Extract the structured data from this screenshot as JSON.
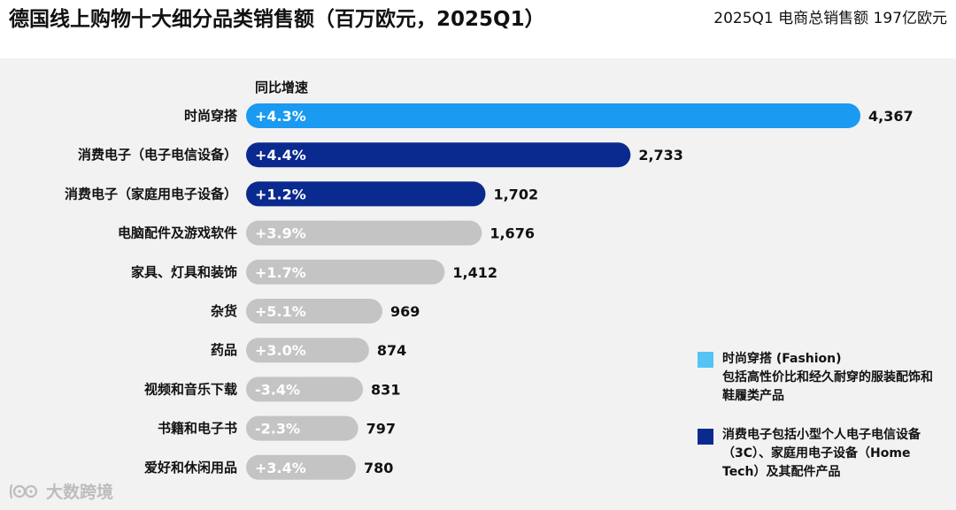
{
  "title": "德国线上购物十大细分品类销售额（百万欧元，2025Q1）",
  "subtitle": "2025Q1 电商总销售额 197亿欧元",
  "watermark": "大数跨境",
  "colors": {
    "fashion": "#1a9af0",
    "electronics": "#0a2a8f",
    "other": "#c4c4c4",
    "legend_fashion": "#55c3f5",
    "legend_electronics": "#0a2a8f",
    "panel": "#f2f2f2"
  },
  "legend": [
    {
      "group": "fashion",
      "title": "时尚穿搭 (Fashion)",
      "text": "包括高性价比和经久耐穿的服装配饰和鞋履类产品"
    },
    {
      "group": "electronics",
      "title": "",
      "text": "消费电子包括小型个人电子电信设备（3C）、家庭用电子设备（Home Tech）及其配件产品"
    }
  ],
  "chart_data": {
    "type": "bar",
    "orientation": "horizontal",
    "title": "德国线上购物十大细分品类销售额（百万欧元，2025Q1）",
    "growth_header": "同比增速",
    "unit": "百万欧元",
    "categories": [
      "时尚穿搭",
      "消费电子（电子电信设备）",
      "消费电子（家庭用电子设备）",
      "电脑配件及游戏软件",
      "家具、灯具和装饰",
      "杂货",
      "药品",
      "视频和音乐下载",
      "书籍和电子书",
      "爱好和休闲用品"
    ],
    "values": [
      4367,
      2733,
      1702,
      1676,
      1412,
      969,
      874,
      831,
      797,
      780
    ],
    "value_labels": [
      "4,367",
      "2,733",
      "1,702",
      "1,676",
      "1,412",
      "969",
      "874",
      "831",
      "797",
      "780"
    ],
    "growth": [
      "+4.3%",
      "+4.4%",
      "+1.2%",
      "+3.9%",
      "+1.7%",
      "+5.1%",
      "+3.0%",
      "-3.4%",
      "-2.3%",
      "+3.4%"
    ],
    "groups": [
      "fashion",
      "electronics",
      "electronics",
      "other",
      "other",
      "other",
      "other",
      "other",
      "other",
      "other"
    ],
    "xlim": [
      0,
      4367
    ]
  }
}
